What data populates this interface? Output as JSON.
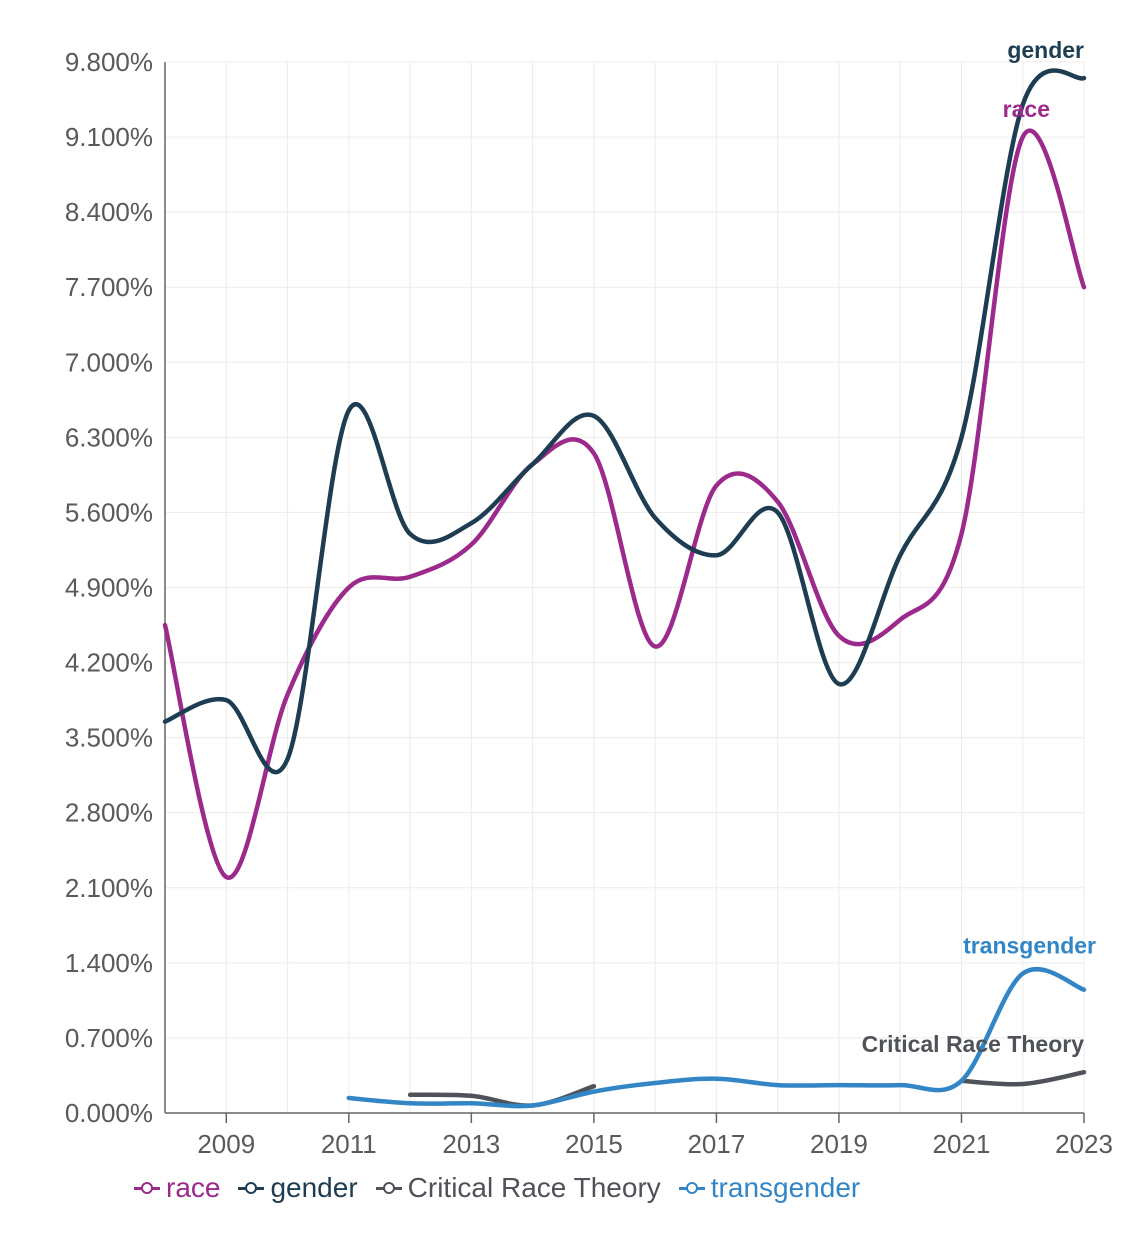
{
  "chart_data": {
    "type": "line",
    "title": "",
    "xlabel": "",
    "ylabel": "",
    "x_ticks": [
      "2009",
      "2011",
      "2013",
      "2015",
      "2017",
      "2019",
      "2021",
      "2023"
    ],
    "x_range": [
      2008,
      2023
    ],
    "y_ticks": [
      "0.000%",
      "0.700%",
      "1.400%",
      "2.100%",
      "2.800%",
      "3.500%",
      "4.200%",
      "4.900%",
      "5.600%",
      "6.300%",
      "7.000%",
      "7.700%",
      "8.400%",
      "9.100%",
      "9.800%"
    ],
    "ylim": [
      0,
      9.8
    ],
    "grid": true,
    "legend_position": "bottom",
    "series": [
      {
        "name": "race",
        "color": "#9c2a8c",
        "end_label": "race",
        "points": [
          [
            2008,
            4.55
          ],
          [
            2009,
            2.2
          ],
          [
            2010,
            3.9
          ],
          [
            2011,
            4.9
          ],
          [
            2012,
            5.0
          ],
          [
            2013,
            5.3
          ],
          [
            2014,
            6.05
          ],
          [
            2015,
            6.15
          ],
          [
            2016,
            4.35
          ],
          [
            2017,
            5.85
          ],
          [
            2018,
            5.7
          ],
          [
            2019,
            4.45
          ],
          [
            2020,
            4.6
          ],
          [
            2021,
            5.4
          ],
          [
            2022,
            9.1
          ],
          [
            2023,
            7.7
          ]
        ]
      },
      {
        "name": "gender",
        "color": "#1e3d52",
        "end_label": "gender",
        "points": [
          [
            2008,
            3.65
          ],
          [
            2009,
            3.85
          ],
          [
            2010,
            3.3
          ],
          [
            2011,
            6.55
          ],
          [
            2012,
            5.4
          ],
          [
            2013,
            5.5
          ],
          [
            2014,
            6.05
          ],
          [
            2015,
            6.5
          ],
          [
            2016,
            5.55
          ],
          [
            2017,
            5.2
          ],
          [
            2018,
            5.6
          ],
          [
            2019,
            4.0
          ],
          [
            2020,
            5.2
          ],
          [
            2021,
            6.3
          ],
          [
            2022,
            9.4
          ],
          [
            2023,
            9.65
          ]
        ]
      },
      {
        "name": "Critical Race Theory",
        "color": "#4f5359",
        "end_label": "Critical Race Theory",
        "points": [
          [
            2012,
            0.17
          ],
          [
            2013,
            0.16
          ],
          [
            2014,
            0.07
          ],
          [
            2015,
            0.25
          ]
        ],
        "points_late": [
          [
            2021,
            0.3
          ],
          [
            2022,
            0.27
          ],
          [
            2023,
            0.38
          ]
        ]
      },
      {
        "name": "transgender",
        "color": "#3386c6",
        "end_label": "transgender",
        "points": [
          [
            2011,
            0.14
          ],
          [
            2012,
            0.09
          ],
          [
            2013,
            0.09
          ],
          [
            2014,
            0.07
          ],
          [
            2015,
            0.2
          ],
          [
            2016,
            0.28
          ],
          [
            2017,
            0.32
          ],
          [
            2018,
            0.26
          ],
          [
            2019,
            0.26
          ],
          [
            2020,
            0.26
          ],
          [
            2021,
            0.3
          ],
          [
            2022,
            1.3
          ],
          [
            2023,
            1.15
          ]
        ]
      }
    ]
  }
}
